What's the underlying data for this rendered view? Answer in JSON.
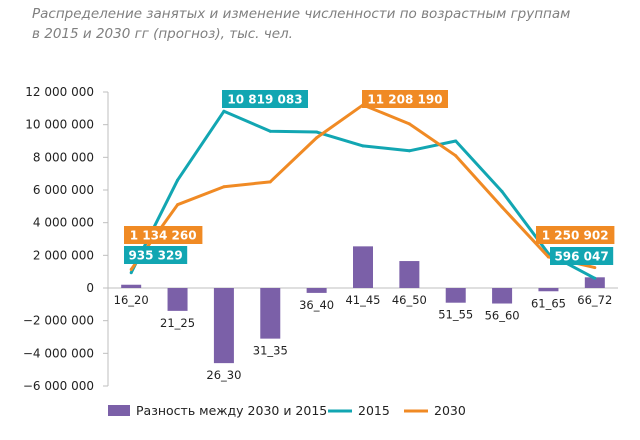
{
  "title_lines": [
    "Распределение занятых и изменение численности по возрастным группам",
    "в 2015 и 2030 гг (прогноз), тыс. чел."
  ],
  "colors": {
    "diff": "#7b60a8",
    "s2015": "#12a6b2",
    "s2030": "#f08a24",
    "axis": "#bfbfbf"
  },
  "chart_data": {
    "type": "bar+line",
    "categories": [
      "16_20",
      "21_25",
      "26_30",
      "31_35",
      "36_40",
      "41_45",
      "46_50",
      "51_55",
      "56_60",
      "61_65",
      "66_72"
    ],
    "series": [
      {
        "name": "Разность между  2030 и 2015",
        "type": "bar",
        "values": [
          200000,
          -1400000,
          -4600000,
          -3100000,
          -300000,
          2550000,
          1650000,
          -900000,
          -950000,
          -200000,
          654855
        ]
      },
      {
        "name": "2015",
        "type": "line",
        "values": [
          935329,
          6600000,
          10819083,
          9600000,
          9550000,
          8700000,
          8400000,
          9000000,
          5900000,
          2100000,
          596047
        ]
      },
      {
        "name": "2030",
        "type": "line",
        "values": [
          1134260,
          5100000,
          6200000,
          6500000,
          9200000,
          11208190,
          10050000,
          8100000,
          4950000,
          1900000,
          1250902
        ]
      }
    ],
    "ylim": [
      -6000000,
      12000000
    ],
    "yticks": [
      12000000,
      10000000,
      8000000,
      6000000,
      4000000,
      2000000,
      0,
      -2000000,
      -4000000,
      -6000000
    ],
    "ytick_labels": [
      "12 000 000",
      "10 000 000",
      "8 000 000",
      "6 000 000",
      "4 000 000",
      "2 000 000",
      "0",
      "−2 000 000",
      "−4 000 000",
      "−6 000 000"
    ],
    "annotations": [
      {
        "text": "10 819 083",
        "series": "2015",
        "index": 2
      },
      {
        "text": "11 208 190",
        "series": "2030",
        "index": 5
      },
      {
        "text": "1 134 260",
        "series": "2030",
        "index": 0
      },
      {
        "text": "935 329",
        "series": "2015",
        "index": 0
      },
      {
        "text": "1 250 902",
        "series": "2030",
        "index": 10
      },
      {
        "text": "596 047",
        "series": "2015",
        "index": 10
      }
    ],
    "legend_position": "bottom",
    "grid": false
  }
}
